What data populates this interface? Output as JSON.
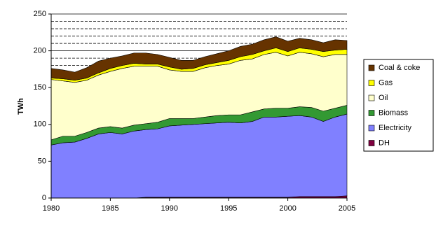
{
  "chart_data": {
    "type": "stacked_area",
    "y_label": "TWh",
    "x": [
      1980,
      1981,
      1982,
      1983,
      1984,
      1985,
      1986,
      1987,
      1988,
      1989,
      1990,
      1991,
      1992,
      1993,
      1994,
      1995,
      1996,
      1997,
      1998,
      1999,
      2000,
      2001,
      2002,
      2003,
      2004,
      2005
    ],
    "xlim": [
      1980,
      2005
    ],
    "xticks": [
      1980,
      1985,
      1990,
      1995,
      2000,
      2005
    ],
    "ylim": [
      0,
      250
    ],
    "yticks": [
      0,
      50,
      100,
      150,
      200,
      250
    ],
    "grid_lines": [
      10,
      20,
      30,
      40,
      60,
      70,
      80,
      90,
      110,
      120,
      130,
      140,
      160,
      170,
      180,
      190,
      210,
      220,
      230,
      240
    ],
    "series": [
      {
        "name": "DH",
        "color": "#800040",
        "values": [
          0,
          0,
          0,
          0,
          0,
          0,
          0,
          0,
          1,
          1,
          1,
          1,
          1,
          1,
          1,
          1,
          1,
          1,
          1,
          1,
          1,
          2,
          2,
          2,
          2,
          3
        ]
      },
      {
        "name": "Electricity",
        "color": "#8080ff",
        "values": [
          72,
          75,
          76,
          81,
          87,
          89,
          87,
          91,
          92,
          93,
          97,
          98,
          99,
          100,
          101,
          102,
          101,
          103,
          109,
          109,
          110,
          110,
          108,
          102,
          108,
          111
        ]
      },
      {
        "name": "Biomass",
        "color": "#339933",
        "values": [
          7,
          9,
          8,
          8,
          8,
          8,
          8,
          8,
          8,
          9,
          10,
          9,
          8,
          9,
          10,
          10,
          11,
          13,
          11,
          12,
          11,
          12,
          13,
          14,
          12,
          12
        ]
      },
      {
        "name": "Oil",
        "color": "#ffffcc",
        "values": [
          82,
          75,
          73,
          71,
          72,
          75,
          81,
          80,
          78,
          76,
          66,
          64,
          64,
          67,
          68,
          69,
          74,
          72,
          74,
          76,
          71,
          74,
          73,
          74,
          73,
          69
        ]
      },
      {
        "name": "Gas",
        "color": "#ffff00",
        "values": [
          2,
          3,
          3,
          3,
          3,
          4,
          4,
          4,
          3,
          3,
          4,
          3,
          4,
          4,
          4,
          5,
          5,
          6,
          5,
          6,
          6,
          6,
          6,
          7,
          6,
          7
        ]
      },
      {
        "name": "Coal & coke",
        "color": "#663300",
        "values": [
          13,
          12,
          11,
          14,
          16,
          14,
          13,
          14,
          15,
          13,
          13,
          12,
          11,
          11,
          12,
          13,
          14,
          14,
          15,
          15,
          14,
          13,
          13,
          12,
          14,
          12
        ]
      }
    ]
  }
}
